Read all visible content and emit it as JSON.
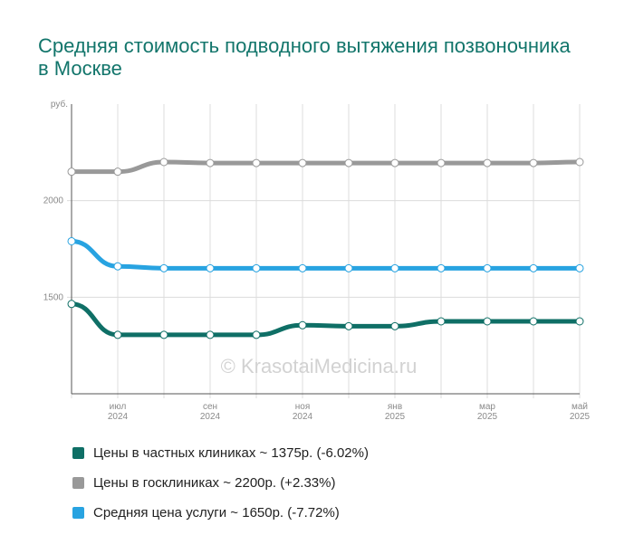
{
  "title": "Средняя стоимость подводного вытяжения позвоночника в Москве",
  "watermark": "© KrasotaiMedicina.ru",
  "chart_data": {
    "type": "line",
    "unit_label": "руб.",
    "ylim": [
      1000,
      2500
    ],
    "yticks": [
      {
        "value": 2000,
        "label": "2000"
      },
      {
        "value": 1500,
        "label": "1500"
      }
    ],
    "x": [
      0,
      1,
      2,
      3,
      4,
      5,
      6,
      7,
      8,
      9,
      10,
      11
    ],
    "xticks": [
      {
        "index": 1,
        "month": "июл",
        "year": "2024"
      },
      {
        "index": 3,
        "month": "сен",
        "year": "2024"
      },
      {
        "index": 5,
        "month": "ноя",
        "year": "2024"
      },
      {
        "index": 7,
        "month": "янв",
        "year": "2025"
      },
      {
        "index": 9,
        "month": "мар",
        "year": "2025"
      },
      {
        "index": 11,
        "month": "май",
        "year": "2025"
      }
    ],
    "grid": true,
    "series": [
      {
        "name": "Цены в госклиниках",
        "color": "#999999",
        "values": [
          2150,
          2150,
          2200,
          2195,
          2195,
          2195,
          2195,
          2195,
          2195,
          2195,
          2195,
          2200
        ]
      },
      {
        "name": "Средняя цена услуги",
        "color": "#28a3e1",
        "values": [
          1790,
          1660,
          1650,
          1650,
          1650,
          1650,
          1650,
          1650,
          1650,
          1650,
          1650,
          1650
        ]
      },
      {
        "name": "Цены в частных клиниках",
        "color": "#0f6f66",
        "values": [
          1465,
          1305,
          1305,
          1305,
          1305,
          1355,
          1350,
          1350,
          1375,
          1375,
          1375,
          1375
        ]
      }
    ]
  },
  "legend": [
    {
      "label": "Цены в частных клиниках ~ 1375р. (-6.02%)",
      "color": "#0f6f66"
    },
    {
      "label": "Цены в госклиниках ~ 2200р. (+2.33%)",
      "color": "#999999"
    },
    {
      "label": "Средняя цена услуги ~ 1650р. (-7.72%)",
      "color": "#28a3e1"
    }
  ]
}
